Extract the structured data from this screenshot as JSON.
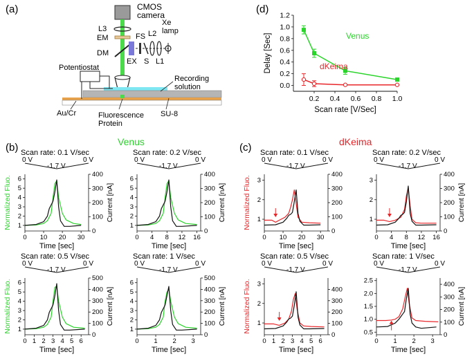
{
  "colors": {
    "venus": "#2bd42b",
    "dkeima": "#e8262a",
    "black": "#111111",
    "cyan": "#7fe7f2",
    "green_beam": "#4cd94c",
    "ex_filter": "#7a78d8",
    "gray": "#9a9a9a",
    "orange": "#e7a14b"
  },
  "panel_a": {
    "label": "(a)",
    "labels": {
      "camera": "CMOS\ncamera",
      "l3": "L3",
      "em": "EM",
      "dm": "DM",
      "fs": "FS",
      "ex": "EX",
      "s": "S",
      "l2": "L2",
      "l1": "L1",
      "xe": "Xe\nlamp",
      "potentiostat": "Potentiostat",
      "recording": "Recording\nsolution",
      "aucr": "Au/Cr",
      "fluorescence": "Fluorescence\nProtein",
      "su8": "SU-8"
    }
  },
  "panel_b": {
    "label": "(b)",
    "title": "Venus"
  },
  "panel_c": {
    "label": "(c)",
    "title": "dKeima"
  },
  "panel_d": {
    "label": "(d)",
    "chart_data": {
      "type": "line",
      "title": "",
      "xlabel": "Scan rate [V/Sec]",
      "ylabel": "Delay [Sec]",
      "xlim": [
        0,
        1.0
      ],
      "ylim": [
        -0.1,
        1.2
      ],
      "xticks": [
        "0.2",
        "0.4",
        "0.6",
        "0.8",
        "1.0"
      ],
      "yticks": [
        "0.0",
        "0.2",
        "0.4",
        "0.6",
        "0.8",
        "1.0",
        "1.2"
      ],
      "series": [
        {
          "name": "Venus",
          "x": [
            0.1,
            0.2,
            0.5,
            1.0
          ],
          "values": [
            0.95,
            0.55,
            0.25,
            0.1
          ],
          "err": [
            0.07,
            0.07,
            0.06,
            0.02
          ],
          "color": "#2bd42b",
          "marker": "square"
        },
        {
          "name": "dKeima",
          "x": [
            0.1,
            0.2,
            0.5,
            1.0
          ],
          "values": [
            0.1,
            0.03,
            0.01,
            0.01
          ],
          "err": [
            0.1,
            0.05,
            0.0,
            0.0
          ],
          "color": "#e8262a",
          "marker": "circle"
        }
      ]
    }
  },
  "chart_data": [
    {
      "type": "line",
      "id": "b1",
      "title": "Scan rate: 0.1 V/sec",
      "wave": {
        "left": "0 V",
        "mid": "-1.7 V",
        "right": "0 V"
      },
      "xlabel": "Time [sec]",
      "ylabel_left": "Normalized Fluo.",
      "ylabel_right": "Current [nA]",
      "xlim": [
        0,
        34
      ],
      "xticks": [
        "0",
        "10",
        "20",
        "30"
      ],
      "ylim": [
        0.4,
        6.5
      ],
      "yticks": [
        "1",
        "2",
        "3",
        "4",
        "5",
        "6"
      ],
      "y2lim": [
        0,
        400
      ],
      "y2ticks": [
        "0",
        "100",
        "200",
        "300",
        "400"
      ],
      "series": [
        {
          "name": "Fluo",
          "color": "#2bd42b",
          "x": [
            0,
            6,
            10,
            12,
            14,
            15,
            16,
            17,
            18,
            20,
            22,
            26,
            30
          ],
          "values": [
            1.0,
            1.05,
            1.2,
            1.5,
            2.3,
            4.0,
            5.5,
            5.8,
            4.0,
            2.3,
            1.6,
            1.2,
            1.1
          ]
        },
        {
          "name": "Current",
          "color": "#111111",
          "x": [
            0,
            6,
            10,
            12,
            13,
            14,
            15,
            16,
            17,
            18,
            19,
            21,
            24,
            30
          ],
          "values": [
            1.0,
            1.1,
            1.4,
            2.0,
            2.8,
            3.2,
            3.6,
            4.6,
            5.9,
            3.0,
            1.5,
            0.9,
            0.9,
            1.0
          ]
        }
      ]
    },
    {
      "type": "line",
      "id": "b2",
      "title": "Scan rate: 0.2 V/sec",
      "wave": {
        "left": "0 V",
        "mid": "-1.7 V",
        "right": "0 V"
      },
      "xlabel": "Time [sec]",
      "ylabel_left": "",
      "ylabel_right": "Current [nA]",
      "xlim": [
        0,
        17
      ],
      "xticks": [
        "0",
        "4",
        "8",
        "12",
        "16"
      ],
      "ylim": [
        0.4,
        6.5
      ],
      "yticks": [
        "1",
        "2",
        "3",
        "4",
        "5",
        "6"
      ],
      "y2lim": [
        0,
        400
      ],
      "y2ticks": [
        "0",
        "100",
        "200",
        "300",
        "400"
      ],
      "series": [
        {
          "name": "Fluo",
          "color": "#2bd42b",
          "x": [
            0,
            3,
            5,
            6,
            7,
            7.5,
            8,
            8.5,
            9,
            10,
            11,
            13,
            16
          ],
          "values": [
            1.0,
            1.05,
            1.2,
            1.5,
            2.3,
            4.0,
            5.5,
            5.8,
            4.0,
            2.3,
            1.6,
            1.2,
            1.1
          ]
        },
        {
          "name": "Current",
          "color": "#111111",
          "x": [
            0,
            3,
            5,
            6,
            6.5,
            7,
            7.5,
            8,
            8.5,
            9,
            9.5,
            10.5,
            12,
            16
          ],
          "values": [
            1.0,
            1.1,
            1.4,
            2.0,
            2.8,
            3.2,
            3.6,
            4.6,
            5.9,
            3.0,
            1.5,
            0.9,
            0.9,
            1.0
          ]
        }
      ]
    },
    {
      "type": "line",
      "id": "b3",
      "title": "Scan rate: 0.5 V/sec",
      "wave": {
        "left": "0 V",
        "mid": "-1.7 V",
        "right": "0 V"
      },
      "xlabel": "Time [sec]",
      "ylabel_left": "Normalized Fluo.",
      "ylabel_right": "Current [nA]",
      "xlim": [
        0,
        6.8
      ],
      "xticks": [
        "0",
        "1",
        "2",
        "3",
        "4",
        "5",
        "6"
      ],
      "ylim": [
        0.4,
        6.5
      ],
      "yticks": [
        "1",
        "2",
        "3",
        "4",
        "5",
        "6"
      ],
      "y2lim": [
        0,
        500
      ],
      "y2ticks": [
        "0",
        "100",
        "200",
        "300",
        "400",
        "500"
      ],
      "series": [
        {
          "name": "Fluo",
          "color": "#2bd42b",
          "x": [
            0,
            1.2,
            2,
            2.4,
            2.8,
            3.0,
            3.2,
            3.4,
            3.6,
            4.0,
            4.4,
            5.2,
            6.4
          ],
          "values": [
            1.0,
            1.05,
            1.2,
            1.5,
            2.3,
            4.0,
            5.5,
            5.6,
            4.0,
            2.3,
            1.6,
            1.2,
            1.1
          ]
        },
        {
          "name": "Current",
          "color": "#111111",
          "x": [
            0,
            1.2,
            2,
            2.4,
            2.6,
            2.8,
            3.0,
            3.2,
            3.4,
            3.6,
            3.8,
            4.2,
            4.8,
            6.4
          ],
          "values": [
            1.0,
            1.1,
            1.4,
            2.0,
            2.8,
            3.2,
            3.6,
            4.6,
            5.9,
            3.0,
            1.5,
            0.9,
            0.9,
            1.0
          ]
        }
      ]
    },
    {
      "type": "line",
      "id": "b4",
      "title": "Scan rate: 1 V/sec",
      "wave": {
        "left": "0 V",
        "mid": "-1.7 V",
        "right": "0 V"
      },
      "xlabel": "Time [sec]",
      "ylabel_left": "",
      "ylabel_right": "Current [nA]",
      "xlim": [
        0,
        3.4
      ],
      "xticks": [
        "0",
        "1",
        "2",
        "3"
      ],
      "ylim": [
        0.4,
        6.5
      ],
      "yticks": [
        "1",
        "2",
        "3",
        "4",
        "5",
        "6"
      ],
      "y2lim": [
        0,
        500
      ],
      "y2ticks": [
        "0",
        "100",
        "200",
        "300",
        "400",
        "500"
      ],
      "series": [
        {
          "name": "Fluo",
          "color": "#2bd42b",
          "x": [
            0,
            0.6,
            1.0,
            1.2,
            1.4,
            1.5,
            1.6,
            1.7,
            1.8,
            2.0,
            2.2,
            2.6,
            3.2
          ],
          "values": [
            1.0,
            1.05,
            1.2,
            1.5,
            2.3,
            4.0,
            5.0,
            5.3,
            4.0,
            2.3,
            1.6,
            1.2,
            1.1
          ]
        },
        {
          "name": "Current",
          "color": "#111111",
          "x": [
            0,
            0.6,
            1.0,
            1.2,
            1.3,
            1.4,
            1.5,
            1.6,
            1.7,
            1.8,
            1.9,
            2.1,
            2.4,
            3.2
          ],
          "values": [
            1.0,
            1.1,
            1.4,
            2.0,
            2.8,
            3.2,
            3.6,
            4.6,
            5.6,
            3.0,
            1.5,
            0.9,
            0.9,
            1.0
          ]
        }
      ]
    },
    {
      "type": "line",
      "id": "c1",
      "title": "Scan rate: 0.1 V/sec",
      "wave": {
        "left": "0 V",
        "mid": "-1.7 V",
        "right": "0 V"
      },
      "xlabel": "Time [sec]",
      "ylabel_left": "Normalized Fluo.",
      "ylabel_right": "",
      "xlim": [
        0,
        34
      ],
      "xticks": [
        "0",
        "10",
        "20",
        "30"
      ],
      "ylim": [
        0.4,
        3.3
      ],
      "yticks": [
        "1",
        "2",
        "3"
      ],
      "y2lim": [
        0,
        400
      ],
      "y2ticks": [
        "0",
        "100",
        "200",
        "300",
        "400"
      ],
      "arrow": {
        "x": 6,
        "dir": "down"
      },
      "series": [
        {
          "name": "Fluo",
          "color": "#e8262a",
          "x": [
            0,
            4,
            6,
            8,
            11,
            13,
            14,
            15,
            16,
            17,
            18,
            20,
            24,
            30
          ],
          "values": [
            0.95,
            0.95,
            0.85,
            0.95,
            1.1,
            1.3,
            1.6,
            2.0,
            2.5,
            1.8,
            1.1,
            0.85,
            0.82,
            0.8
          ]
        },
        {
          "name": "Current",
          "color": "#111111",
          "x": [
            0,
            6,
            10,
            12,
            13,
            14,
            15,
            16,
            17,
            18,
            19,
            21,
            24,
            30
          ],
          "values": [
            0.7,
            0.72,
            0.85,
            1.05,
            1.2,
            1.25,
            1.35,
            1.9,
            2.5,
            1.3,
            0.9,
            0.7,
            0.7,
            0.72
          ]
        }
      ]
    },
    {
      "type": "line",
      "id": "c2",
      "title": "Scan rate: 0.2 V/sec",
      "wave": {
        "left": "0 V",
        "mid": "-1.7 V",
        "right": "0 V"
      },
      "xlabel": "Time [sec]",
      "ylabel_left": "",
      "ylabel_right": "Current [nA]",
      "xlim": [
        0,
        17
      ],
      "xticks": [
        "0",
        "4",
        "8",
        "12",
        "16"
      ],
      "ylim": [
        0.4,
        3.3
      ],
      "yticks": [
        "1",
        "2",
        "3"
      ],
      "y2lim": [
        0,
        400
      ],
      "y2ticks": [
        "0",
        "100",
        "200",
        "300",
        "400"
      ],
      "arrow": {
        "x": 3.5,
        "dir": "down"
      },
      "series": [
        {
          "name": "Fluo",
          "color": "#e8262a",
          "x": [
            0,
            2,
            3.5,
            5,
            6.5,
            7.5,
            8,
            8.5,
            9,
            9.5,
            10.5,
            12,
            16
          ],
          "values": [
            0.95,
            0.95,
            0.88,
            0.95,
            1.1,
            1.5,
            2.2,
            2.6,
            1.7,
            1.0,
            0.82,
            0.8,
            0.8
          ]
        },
        {
          "name": "Current",
          "color": "#111111",
          "x": [
            0,
            3,
            5,
            6,
            6.5,
            7,
            7.5,
            8,
            8.5,
            9,
            9.5,
            10.5,
            12,
            16
          ],
          "values": [
            0.7,
            0.72,
            0.85,
            1.05,
            1.2,
            1.25,
            1.35,
            1.9,
            2.7,
            1.3,
            0.9,
            0.7,
            0.7,
            0.72
          ]
        }
      ]
    },
    {
      "type": "line",
      "id": "c3",
      "title": "Scan rate: 0.5 V/sec",
      "wave": {
        "left": "0 V",
        "mid": "-1.7 V",
        "right": "0 V"
      },
      "xlabel": "Time [sec]",
      "ylabel_left": "Normalized Fluo.",
      "ylabel_right": "",
      "xlim": [
        0,
        6.8
      ],
      "xticks": [
        "0",
        "1",
        "2",
        "3",
        "4",
        "5",
        "6"
      ],
      "ylim": [
        0.4,
        3.3
      ],
      "yticks": [
        "1",
        "2",
        "3"
      ],
      "y2lim": [
        0,
        500
      ],
      "y2ticks": [
        "0",
        "100",
        "200",
        "300",
        "400"
      ],
      "arrow": {
        "x": 1.6,
        "dir": "down"
      },
      "series": [
        {
          "name": "Fluo",
          "color": "#e8262a",
          "x": [
            0,
            1,
            1.6,
            2.2,
            2.6,
            2.9,
            3.1,
            3.3,
            3.5,
            3.8,
            4.2,
            5,
            6.4
          ],
          "values": [
            0.95,
            0.95,
            0.88,
            1.0,
            1.2,
            1.6,
            2.2,
            2.5,
            1.7,
            1.0,
            0.85,
            0.82,
            0.8
          ]
        },
        {
          "name": "Current",
          "color": "#111111",
          "x": [
            0,
            1.2,
            2,
            2.4,
            2.6,
            2.8,
            3.0,
            3.2,
            3.4,
            3.6,
            3.8,
            4.2,
            4.8,
            6.4
          ],
          "values": [
            0.7,
            0.72,
            0.85,
            1.05,
            1.2,
            1.25,
            1.35,
            1.9,
            2.6,
            1.3,
            0.9,
            0.7,
            0.7,
            0.72
          ]
        }
      ]
    },
    {
      "type": "line",
      "id": "c4",
      "title": "Scan rate: 1 V/sec",
      "wave": {
        "left": "0 V",
        "mid": "-1.7 V",
        "right": "0 V"
      },
      "xlabel": "Time [sec]",
      "ylabel_left": "",
      "ylabel_right": "Current [nA]",
      "xlim": [
        0,
        3.4
      ],
      "xticks": [
        "0",
        "1",
        "2",
        "3"
      ],
      "ylim": [
        0.4,
        2.6
      ],
      "yticks": [
        "0.5",
        "1.0",
        "1.5",
        "2.0",
        "2.5"
      ],
      "y2lim": [
        0,
        450
      ],
      "y2ticks": [
        "0",
        "100",
        "200",
        "300",
        "400"
      ],
      "arrow": {
        "x": 0.8,
        "dir": "up"
      },
      "series": [
        {
          "name": "Fluo",
          "color": "#e8262a",
          "x": [
            0,
            0.5,
            0.8,
            1.0,
            1.2,
            1.4,
            1.55,
            1.65,
            1.75,
            1.9,
            2.1,
            2.6,
            3.3
          ],
          "values": [
            0.95,
            0.95,
            0.97,
            1.0,
            1.1,
            1.4,
            1.9,
            2.2,
            1.6,
            1.05,
            0.95,
            0.92,
            0.9
          ]
        },
        {
          "name": "Current",
          "color": "#111111",
          "x": [
            0,
            0.6,
            1.0,
            1.2,
            1.3,
            1.4,
            1.5,
            1.6,
            1.7,
            1.8,
            1.9,
            2.1,
            2.4,
            3.2
          ],
          "values": [
            0.7,
            0.72,
            0.85,
            1.0,
            1.1,
            1.2,
            1.3,
            1.8,
            2.2,
            1.2,
            0.85,
            0.7,
            0.65,
            0.7
          ]
        }
      ]
    }
  ]
}
